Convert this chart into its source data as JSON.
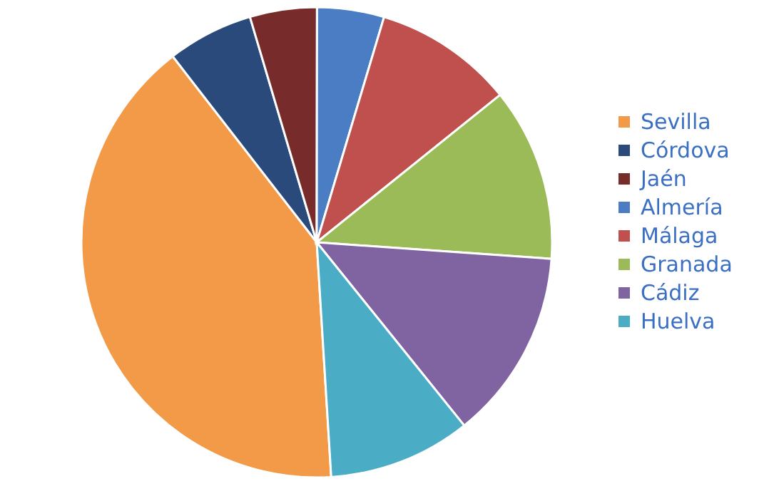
{
  "chart_data": {
    "type": "pie",
    "categories": [
      "Sevilla",
      "Córdova",
      "Jaén",
      "Almería",
      "Málaga",
      "Granada",
      "Cádiz",
      "Huelva"
    ],
    "values": [
      40.5,
      5.9,
      4.6,
      4.6,
      9.6,
      11.9,
      13.1,
      9.8
    ],
    "colors": [
      "#f39a48",
      "#2a4a7b",
      "#782b2b",
      "#4a7dc4",
      "#c0504d",
      "#9bbb59",
      "#8064a2",
      "#4bacc6"
    ],
    "legend": "right"
  }
}
